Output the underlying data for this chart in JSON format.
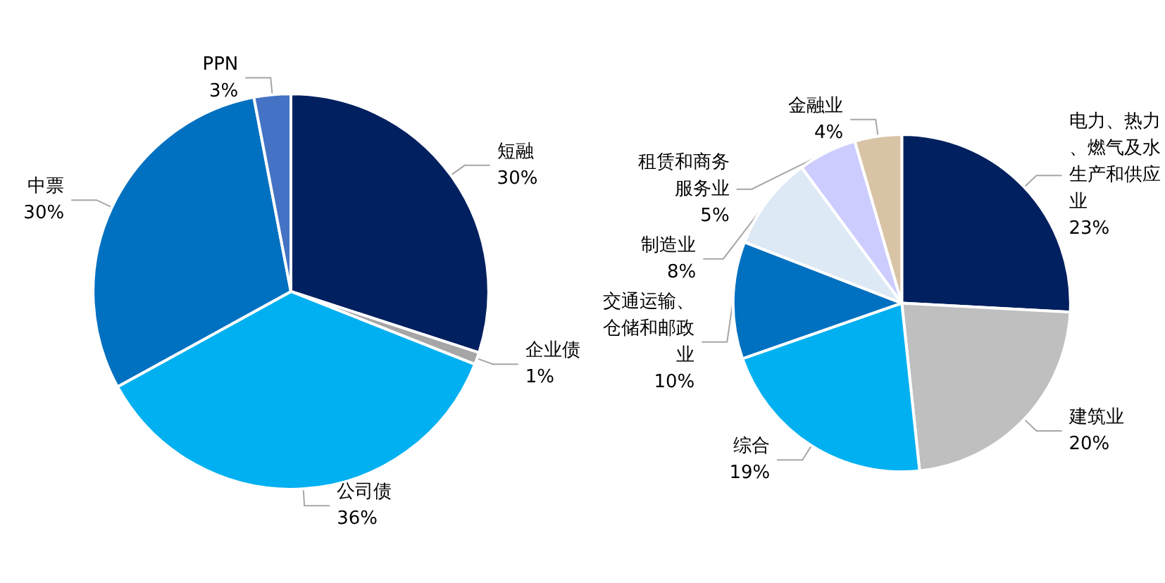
{
  "chart_data": [
    {
      "type": "pie",
      "categories": [
        "短融",
        "企业债",
        "公司债",
        "中票",
        "PPN"
      ],
      "values": [
        30,
        1,
        36,
        30,
        3
      ],
      "colors": [
        "#002060",
        "#a6a6a6",
        "#00b0f0",
        "#0070c0",
        "#4472c4"
      ],
      "value_labels": [
        "30%",
        "1%",
        "36%",
        "30%",
        "3%"
      ]
    },
    {
      "type": "pie",
      "categories": [
        "电力、热力、燃气及水生产和供应业",
        "建筑业",
        "综合",
        "交通运输、仓储和邮政业",
        "制造业",
        "租赁和商务服务业",
        "金融业"
      ],
      "values": [
        23,
        20,
        19,
        10,
        8,
        5,
        4
      ],
      "colors": [
        "#002060",
        "#bfbfbf",
        "#00b0f0",
        "#0070c0",
        "#dde9f5",
        "#ccccff",
        "#d9c3a5"
      ],
      "value_labels": [
        "23%",
        "20%",
        "19%",
        "10%",
        "8%",
        "5%",
        "4%"
      ]
    }
  ]
}
